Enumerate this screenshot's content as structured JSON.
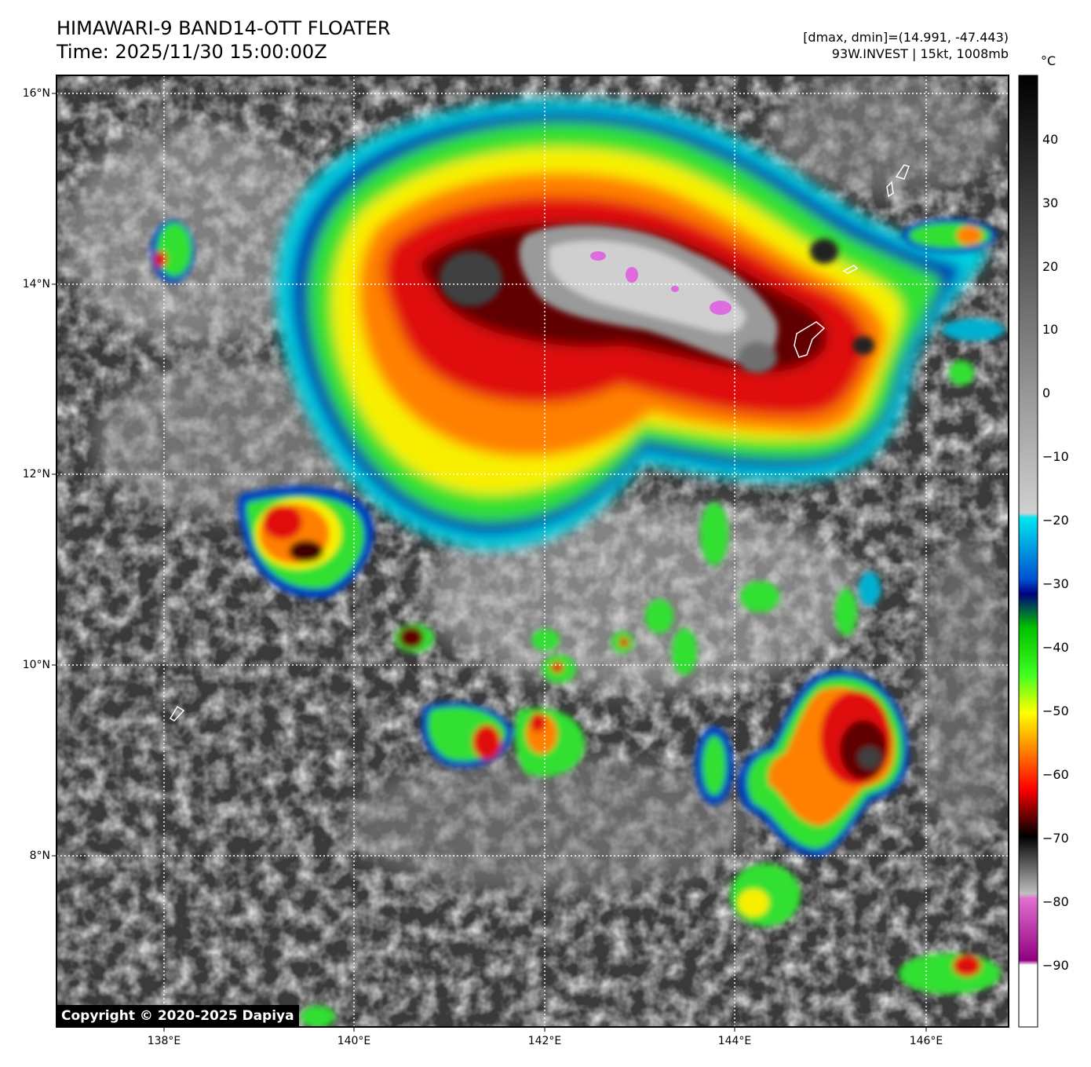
{
  "header": {
    "title": "HIMAWARI-9 BAND14-OTT FLOATER",
    "time": "Time: 2025/11/30 15:00:00Z",
    "range_info": "[dmax, dmin]=(14.991, -47.443)",
    "storm_info": "93W.INVEST | 15kt, 1008mb"
  },
  "map": {
    "lat_labels": [
      "16°N",
      "14°N",
      "12°N",
      "10°N",
      "8°N"
    ],
    "lon_labels": [
      "138°E",
      "140°E",
      "142°E",
      "144°E",
      "146°E"
    ]
  },
  "colorbar": {
    "unit": "°C",
    "ticks": [
      "40",
      "30",
      "20",
      "10",
      "0",
      "−10",
      "−20",
      "−30",
      "−40",
      "−50",
      "−60",
      "−70",
      "−80",
      "−90"
    ]
  },
  "copyright": "Copyright © 2020-2025 Dapiya",
  "colors": {
    "cold_cyan": "#00e5f0",
    "blue": "#0040c0",
    "green": "#30e030",
    "yellow": "#f8f000",
    "orange": "#ff8000",
    "red": "#e01010",
    "darkred": "#600000",
    "magenta": "#e060e0"
  }
}
